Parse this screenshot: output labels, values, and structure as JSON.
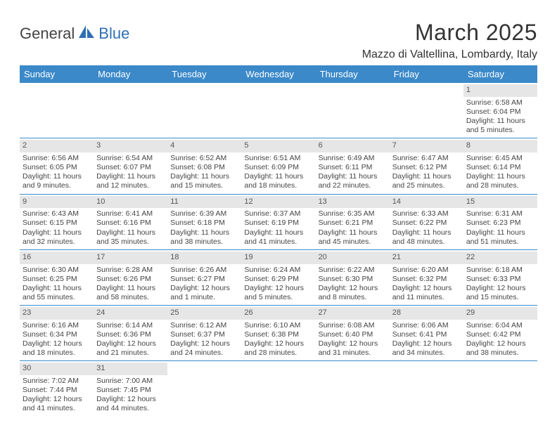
{
  "logo": {
    "general": "General",
    "blue": "Blue"
  },
  "title": "March 2025",
  "location": "Mazzo di Valtellina, Lombardy, Italy",
  "colors": {
    "header_bg": "#3b89c9",
    "header_fg": "#ffffff",
    "daynum_bg": "#e6e6e6",
    "border": "#3b89c9",
    "logo_blue": "#2f6fb2"
  },
  "weekdays": [
    "Sunday",
    "Monday",
    "Tuesday",
    "Wednesday",
    "Thursday",
    "Friday",
    "Saturday"
  ],
  "weeks": [
    [
      {
        "empty": true
      },
      {
        "empty": true
      },
      {
        "empty": true
      },
      {
        "empty": true
      },
      {
        "empty": true
      },
      {
        "empty": true
      },
      {
        "day": "1",
        "sunrise": "Sunrise: 6:58 AM",
        "sunset": "Sunset: 6:04 PM",
        "daylight": "Daylight: 11 hours and 5 minutes."
      }
    ],
    [
      {
        "day": "2",
        "sunrise": "Sunrise: 6:56 AM",
        "sunset": "Sunset: 6:05 PM",
        "daylight": "Daylight: 11 hours and 9 minutes."
      },
      {
        "day": "3",
        "sunrise": "Sunrise: 6:54 AM",
        "sunset": "Sunset: 6:07 PM",
        "daylight": "Daylight: 11 hours and 12 minutes."
      },
      {
        "day": "4",
        "sunrise": "Sunrise: 6:52 AM",
        "sunset": "Sunset: 6:08 PM",
        "daylight": "Daylight: 11 hours and 15 minutes."
      },
      {
        "day": "5",
        "sunrise": "Sunrise: 6:51 AM",
        "sunset": "Sunset: 6:09 PM",
        "daylight": "Daylight: 11 hours and 18 minutes."
      },
      {
        "day": "6",
        "sunrise": "Sunrise: 6:49 AM",
        "sunset": "Sunset: 6:11 PM",
        "daylight": "Daylight: 11 hours and 22 minutes."
      },
      {
        "day": "7",
        "sunrise": "Sunrise: 6:47 AM",
        "sunset": "Sunset: 6:12 PM",
        "daylight": "Daylight: 11 hours and 25 minutes."
      },
      {
        "day": "8",
        "sunrise": "Sunrise: 6:45 AM",
        "sunset": "Sunset: 6:14 PM",
        "daylight": "Daylight: 11 hours and 28 minutes."
      }
    ],
    [
      {
        "day": "9",
        "sunrise": "Sunrise: 6:43 AM",
        "sunset": "Sunset: 6:15 PM",
        "daylight": "Daylight: 11 hours and 32 minutes."
      },
      {
        "day": "10",
        "sunrise": "Sunrise: 6:41 AM",
        "sunset": "Sunset: 6:16 PM",
        "daylight": "Daylight: 11 hours and 35 minutes."
      },
      {
        "day": "11",
        "sunrise": "Sunrise: 6:39 AM",
        "sunset": "Sunset: 6:18 PM",
        "daylight": "Daylight: 11 hours and 38 minutes."
      },
      {
        "day": "12",
        "sunrise": "Sunrise: 6:37 AM",
        "sunset": "Sunset: 6:19 PM",
        "daylight": "Daylight: 11 hours and 41 minutes."
      },
      {
        "day": "13",
        "sunrise": "Sunrise: 6:35 AM",
        "sunset": "Sunset: 6:21 PM",
        "daylight": "Daylight: 11 hours and 45 minutes."
      },
      {
        "day": "14",
        "sunrise": "Sunrise: 6:33 AM",
        "sunset": "Sunset: 6:22 PM",
        "daylight": "Daylight: 11 hours and 48 minutes."
      },
      {
        "day": "15",
        "sunrise": "Sunrise: 6:31 AM",
        "sunset": "Sunset: 6:23 PM",
        "daylight": "Daylight: 11 hours and 51 minutes."
      }
    ],
    [
      {
        "day": "16",
        "sunrise": "Sunrise: 6:30 AM",
        "sunset": "Sunset: 6:25 PM",
        "daylight": "Daylight: 11 hours and 55 minutes."
      },
      {
        "day": "17",
        "sunrise": "Sunrise: 6:28 AM",
        "sunset": "Sunset: 6:26 PM",
        "daylight": "Daylight: 11 hours and 58 minutes."
      },
      {
        "day": "18",
        "sunrise": "Sunrise: 6:26 AM",
        "sunset": "Sunset: 6:27 PM",
        "daylight": "Daylight: 12 hours and 1 minute."
      },
      {
        "day": "19",
        "sunrise": "Sunrise: 6:24 AM",
        "sunset": "Sunset: 6:29 PM",
        "daylight": "Daylight: 12 hours and 5 minutes."
      },
      {
        "day": "20",
        "sunrise": "Sunrise: 6:22 AM",
        "sunset": "Sunset: 6:30 PM",
        "daylight": "Daylight: 12 hours and 8 minutes."
      },
      {
        "day": "21",
        "sunrise": "Sunrise: 6:20 AM",
        "sunset": "Sunset: 6:32 PM",
        "daylight": "Daylight: 12 hours and 11 minutes."
      },
      {
        "day": "22",
        "sunrise": "Sunrise: 6:18 AM",
        "sunset": "Sunset: 6:33 PM",
        "daylight": "Daylight: 12 hours and 15 minutes."
      }
    ],
    [
      {
        "day": "23",
        "sunrise": "Sunrise: 6:16 AM",
        "sunset": "Sunset: 6:34 PM",
        "daylight": "Daylight: 12 hours and 18 minutes."
      },
      {
        "day": "24",
        "sunrise": "Sunrise: 6:14 AM",
        "sunset": "Sunset: 6:36 PM",
        "daylight": "Daylight: 12 hours and 21 minutes."
      },
      {
        "day": "25",
        "sunrise": "Sunrise: 6:12 AM",
        "sunset": "Sunset: 6:37 PM",
        "daylight": "Daylight: 12 hours and 24 minutes."
      },
      {
        "day": "26",
        "sunrise": "Sunrise: 6:10 AM",
        "sunset": "Sunset: 6:38 PM",
        "daylight": "Daylight: 12 hours and 28 minutes."
      },
      {
        "day": "27",
        "sunrise": "Sunrise: 6:08 AM",
        "sunset": "Sunset: 6:40 PM",
        "daylight": "Daylight: 12 hours and 31 minutes."
      },
      {
        "day": "28",
        "sunrise": "Sunrise: 6:06 AM",
        "sunset": "Sunset: 6:41 PM",
        "daylight": "Daylight: 12 hours and 34 minutes."
      },
      {
        "day": "29",
        "sunrise": "Sunrise: 6:04 AM",
        "sunset": "Sunset: 6:42 PM",
        "daylight": "Daylight: 12 hours and 38 minutes."
      }
    ],
    [
      {
        "day": "30",
        "sunrise": "Sunrise: 7:02 AM",
        "sunset": "Sunset: 7:44 PM",
        "daylight": "Daylight: 12 hours and 41 minutes."
      },
      {
        "day": "31",
        "sunrise": "Sunrise: 7:00 AM",
        "sunset": "Sunset: 7:45 PM",
        "daylight": "Daylight: 12 hours and 44 minutes."
      },
      {
        "empty": true
      },
      {
        "empty": true
      },
      {
        "empty": true
      },
      {
        "empty": true
      },
      {
        "empty": true
      }
    ]
  ]
}
